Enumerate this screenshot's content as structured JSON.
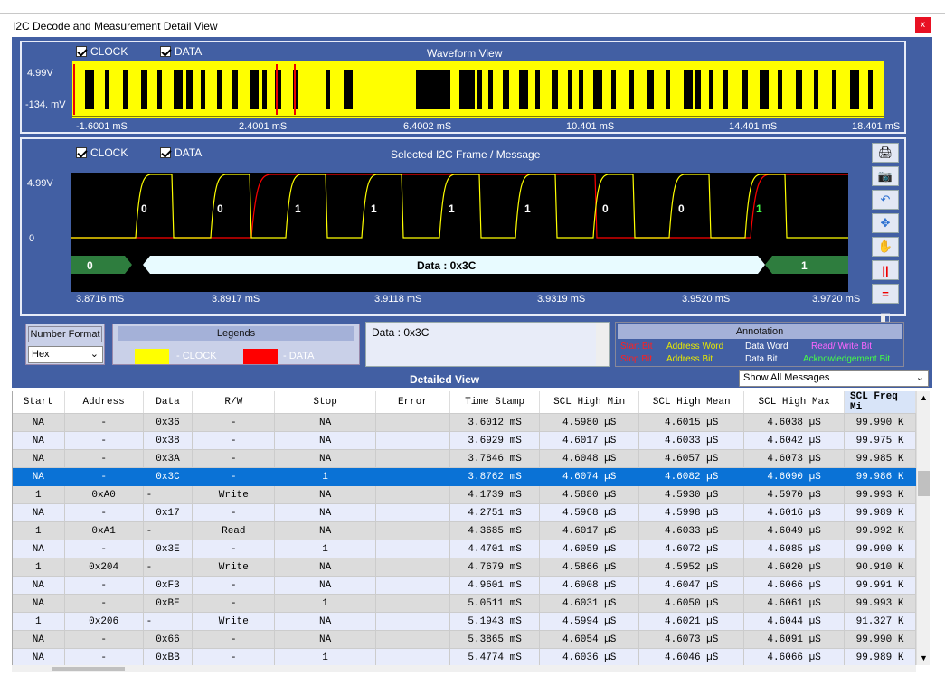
{
  "window": {
    "title": "I2C Decode and Measurement Detail View",
    "close": "x"
  },
  "waveform": {
    "title": "Waveform View",
    "clock_label": "CLOCK",
    "data_label": "DATA",
    "y_top": "4.99V",
    "y_bottom": "-134. mV",
    "x_ticks": [
      "-1.6001 mS",
      "2.4001 mS",
      "6.4002 mS",
      "10.401 mS",
      "14.401 mS",
      "18.401 mS"
    ]
  },
  "frame": {
    "title": "Selected I2C Frame / Message",
    "clock_label": "CLOCK",
    "data_label": "DATA",
    "y_top": "4.99V",
    "y_bottom": "0",
    "bits": [
      "0",
      "0",
      "1",
      "1",
      "1",
      "1",
      "0",
      "0",
      "1"
    ],
    "start_bit": "0",
    "data_text": "Data : 0x3C",
    "ack_bit": "1",
    "x_ticks": [
      "3.8716 mS",
      "3.8917 mS",
      "3.9118 mS",
      "3.9319 mS",
      "3.9520 mS",
      "3.9720 mS"
    ]
  },
  "colors": {
    "clock": "#ffff00",
    "data": "#ff0000",
    "panel": "#425fa3",
    "selected_row": "#0a72d6"
  },
  "controls": {
    "number_format_label": "Number Format",
    "number_format_value": "Hex",
    "legends_title": "Legends",
    "legend_clock": "- CLOCK",
    "legend_data": "- DATA",
    "data_box_text": "Data : 0x3C",
    "annotation_title": "Annotation",
    "annotation_items": [
      "Start Bit",
      "Address Word",
      "Data Word",
      "Read/ Write Bit",
      "Stop Bit",
      "Address Bit",
      "Data Bit",
      "Acknowledgement Bit"
    ],
    "annotation_colors": [
      "#ff2020",
      "#e8e800",
      "#ffffff",
      "#ff66ff",
      "#ff2020",
      "#e8e800",
      "#ffffff",
      "#44ff44"
    ]
  },
  "toolbar_icons": [
    "print-icon",
    "camera-icon",
    "undo-icon",
    "move-icon",
    "hand-icon",
    "vertical-cursor-icon",
    "horizontal-cursor-icon",
    "layers-icon"
  ],
  "detail": {
    "title": "Detailed View",
    "filter": "Show All Messages",
    "columns": [
      "Start",
      "Address",
      "Data",
      "R/W",
      "Stop",
      "Error",
      "Time Stamp",
      "SCL High Min",
      "SCL High Mean",
      "SCL High Max",
      "SCL Freq Mi"
    ],
    "rows": [
      [
        "NA",
        "-",
        "0x36",
        "-",
        "NA",
        "",
        "3.6012 mS",
        "4.5980 µS",
        "4.6015 µS",
        "4.6038 µS",
        "99.990 K"
      ],
      [
        "NA",
        "-",
        "0x38",
        "-",
        "NA",
        "",
        "3.6929 mS",
        "4.6017 µS",
        "4.6033 µS",
        "4.6042 µS",
        "99.975 K"
      ],
      [
        "NA",
        "-",
        "0x3A",
        "-",
        "NA",
        "",
        "3.7846 mS",
        "4.6048 µS",
        "4.6057 µS",
        "4.6073 µS",
        "99.985 K"
      ],
      [
        "NA",
        "-",
        "0x3C",
        "-",
        "1",
        "",
        "3.8762 mS",
        "4.6074 µS",
        "4.6082 µS",
        "4.6090 µS",
        "99.986 K"
      ],
      [
        "1",
        "0xA0",
        "-",
        "Write",
        "NA",
        "",
        "4.1739 mS",
        "4.5880 µS",
        "4.5930 µS",
        "4.5970 µS",
        "99.993 K"
      ],
      [
        "NA",
        "-",
        "0x17",
        "-",
        "NA",
        "",
        "4.2751 mS",
        "4.5968 µS",
        "4.5998 µS",
        "4.6016 µS",
        "99.989 K"
      ],
      [
        "1",
        "0xA1",
        "-",
        "Read",
        "NA",
        "",
        "4.3685 mS",
        "4.6017 µS",
        "4.6033 µS",
        "4.6049 µS",
        "99.992 K"
      ],
      [
        "NA",
        "-",
        "0x3E",
        "-",
        "1",
        "",
        "4.4701 mS",
        "4.6059 µS",
        "4.6072 µS",
        "4.6085 µS",
        "99.990 K"
      ],
      [
        "1",
        "0x204",
        "-",
        "Write",
        "NA",
        "",
        "4.7679 mS",
        "4.5866 µS",
        "4.5952 µS",
        "4.6020 µS",
        "90.910 K"
      ],
      [
        "NA",
        "-",
        "0xF3",
        "-",
        "NA",
        "",
        "4.9601 mS",
        "4.6008 µS",
        "4.6047 µS",
        "4.6066 µS",
        "99.991 K"
      ],
      [
        "NA",
        "-",
        "0xBE",
        "-",
        "1",
        "",
        "5.0511 mS",
        "4.6031 µS",
        "4.6050 µS",
        "4.6061 µS",
        "99.993 K"
      ],
      [
        "1",
        "0x206",
        "-",
        "Write",
        "NA",
        "",
        "5.1943 mS",
        "4.5994 µS",
        "4.6021 µS",
        "4.6044 µS",
        "91.327 K"
      ],
      [
        "NA",
        "-",
        "0x66",
        "-",
        "NA",
        "",
        "5.3865 mS",
        "4.6054 µS",
        "4.6073 µS",
        "4.6091 µS",
        "99.990 K"
      ],
      [
        "NA",
        "-",
        "0xBB",
        "-",
        "1",
        "",
        "5.4774 mS",
        "4.6036 µS",
        "4.6046 µS",
        "4.6066 µS",
        "99.989 K"
      ]
    ],
    "selected_row": 3
  }
}
